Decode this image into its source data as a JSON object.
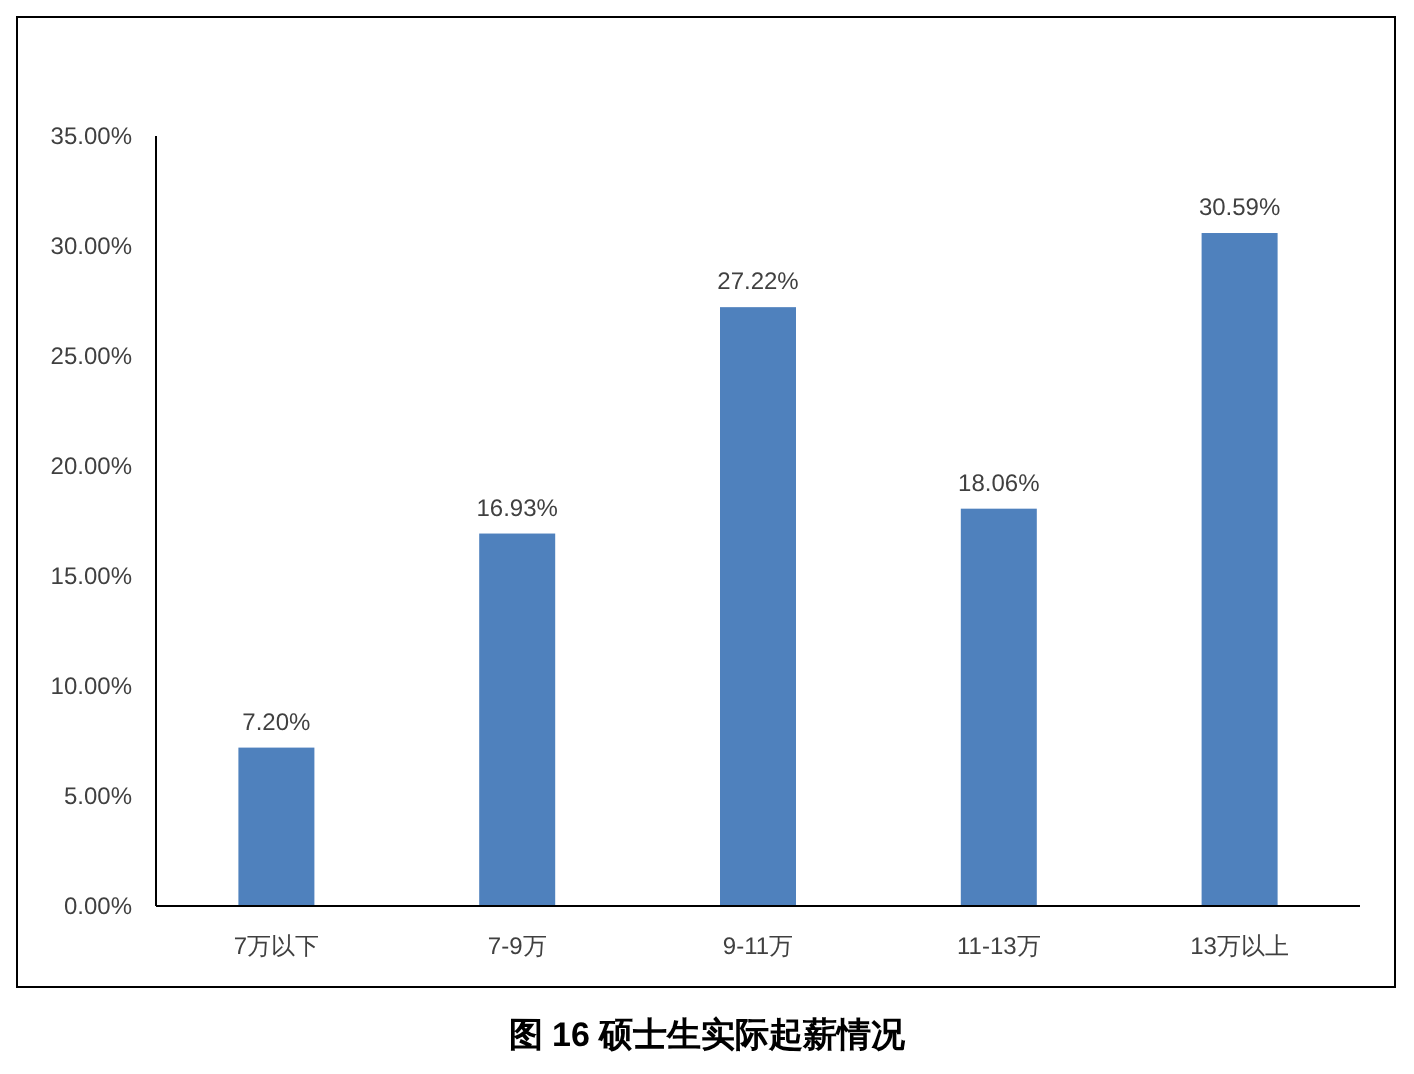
{
  "chart_data": {
    "type": "bar",
    "title": "图 16 硕士生实际起薪情况",
    "categories": [
      "7万以下",
      "7-9万",
      "9-11万",
      "11-13万",
      "13万以上"
    ],
    "values": [
      7.2,
      16.93,
      27.22,
      18.06,
      30.59
    ],
    "value_labels": [
      "7.20%",
      "16.93%",
      "27.22%",
      "18.06%",
      "30.59%"
    ],
    "color": "#4f81bd",
    "ylim": [
      0,
      35
    ],
    "yticks": [
      {
        "value": 0,
        "label": "0.00%"
      },
      {
        "value": 5,
        "label": "5.00%"
      },
      {
        "value": 10,
        "label": "10.00%"
      },
      {
        "value": 15,
        "label": "15.00%"
      },
      {
        "value": 20,
        "label": "20.00%"
      },
      {
        "value": 25,
        "label": "25.00%"
      },
      {
        "value": 30,
        "label": "30.00%"
      },
      {
        "value": 35,
        "label": "35.00%"
      }
    ],
    "grid": false
  }
}
